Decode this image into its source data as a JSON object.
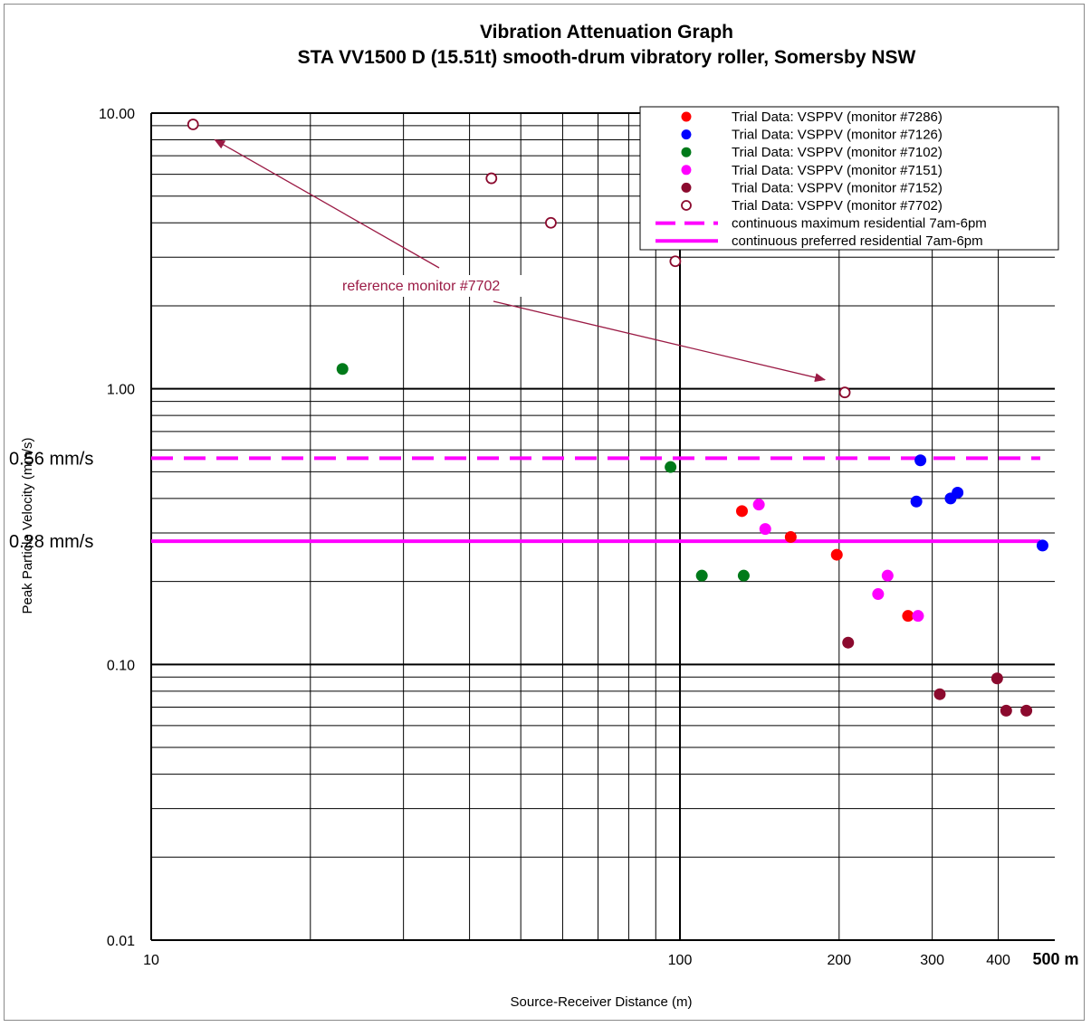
{
  "chart_data": {
    "type": "scatter",
    "title": "Vibration Attenuation Graph",
    "subtitle": "STA VV1500 D (15.51t) smooth-drum vibratory roller, Somersby NSW",
    "xlabel": "Source-Receiver Distance (m)",
    "ylabel": "Peak Particle Velocity (mm/s)",
    "x_scale": "log",
    "y_scale": "log",
    "xlim": [
      10,
      500
    ],
    "ylim": [
      0.01,
      10
    ],
    "x_ticks": [
      {
        "value": 10,
        "label": "10"
      },
      {
        "value": 100,
        "label": "100"
      },
      {
        "value": 200,
        "label": "200"
      },
      {
        "value": 300,
        "label": "300"
      },
      {
        "value": 400,
        "label": "400"
      },
      {
        "value": 500,
        "label": "500 m"
      }
    ],
    "y_ticks": [
      {
        "value": 10,
        "label": "10.00"
      },
      {
        "value": 1,
        "label": "1.00"
      },
      {
        "value": 0.1,
        "label": "0.10"
      },
      {
        "value": 0.01,
        "label": "0.01"
      }
    ],
    "grid": true,
    "legend_position": "top-right",
    "series": [
      {
        "name": "Trial Data: VSPPV (monitor #7286)",
        "color": "#ff0000",
        "marker": "filled-circle",
        "points": [
          [
            131,
            0.36
          ],
          [
            162,
            0.29
          ],
          [
            198,
            0.25
          ],
          [
            270,
            0.15
          ]
        ]
      },
      {
        "name": "Trial Data: VSPPV (monitor #7126)",
        "color": "#0000ff",
        "marker": "filled-circle",
        "points": [
          [
            285,
            0.55
          ],
          [
            280,
            0.39
          ],
          [
            325,
            0.4
          ],
          [
            335,
            0.42
          ],
          [
            485,
            0.27
          ]
        ]
      },
      {
        "name": "Trial Data: VSPPV (monitor #7102)",
        "color": "#007a1a",
        "marker": "filled-circle",
        "points": [
          [
            23,
            1.18
          ],
          [
            96,
            0.52
          ],
          [
            110,
            0.21
          ],
          [
            132,
            0.21
          ]
        ]
      },
      {
        "name": "Trial Data: VSPPV (monitor #7151)",
        "color": "#ff00ff",
        "marker": "filled-circle",
        "points": [
          [
            141,
            0.38
          ],
          [
            145,
            0.31
          ],
          [
            237,
            0.18
          ],
          [
            247,
            0.21
          ],
          [
            282,
            0.15
          ]
        ]
      },
      {
        "name": "Trial Data: VSPPV (monitor #7152)",
        "color": "#8b0a2e",
        "marker": "filled-circle",
        "points": [
          [
            208,
            0.12
          ],
          [
            310,
            0.078
          ],
          [
            398,
            0.089
          ],
          [
            414,
            0.068
          ],
          [
            452,
            0.068
          ]
        ]
      },
      {
        "name": "Trial Data: VSPPV (monitor #7702)",
        "color": "#8b0a2e",
        "marker": "open-circle",
        "points": [
          [
            12,
            9.1
          ],
          [
            44,
            5.8
          ],
          [
            57,
            4.0
          ],
          [
            98,
            2.9
          ],
          [
            205,
            0.97
          ]
        ]
      }
    ],
    "reference_lines": [
      {
        "name": "continuous preferred residential 7am-6pm",
        "value": 0.28,
        "label": "0.28 mm/s",
        "style": "solid",
        "color": "#ff00ff"
      },
      {
        "name": "continuous maximum residential 7am-6pm",
        "value": 0.56,
        "label": "0.56 mm/s",
        "style": "dashed",
        "color": "#ff00ff"
      }
    ],
    "annotations": [
      {
        "text": "reference monitor #7702",
        "color": "#9b1b45",
        "arrow_targets": [
          [
            12,
            9.1
          ],
          [
            205,
            0.97
          ]
        ]
      }
    ]
  }
}
